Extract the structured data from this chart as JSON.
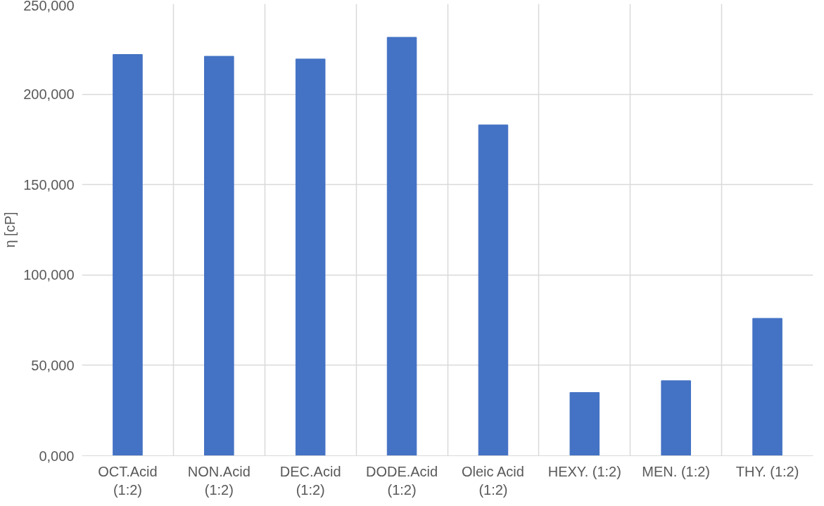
{
  "chart_data": {
    "type": "bar",
    "ylabel": "η [cP]",
    "categories": [
      "OCT.Acid\n(1:2)",
      "NON.Acid\n(1:2)",
      "DEC.Acid\n(1:2)",
      "DODE.Acid\n(1:2)",
      "Oleic Acid\n(1:2)",
      "HEXY. (1:2)",
      "MEN. (1:2)",
      "THY. (1:2)"
    ],
    "values": [
      222000,
      221000,
      219500,
      231500,
      183000,
      35000,
      41500,
      76000
    ],
    "color": "#4472c4",
    "ylim": [
      0,
      250000
    ],
    "yticks": [
      {
        "value": 0,
        "label": "0,000"
      },
      {
        "value": 50000,
        "label": "50,000"
      },
      {
        "value": 100000,
        "label": "100,000"
      },
      {
        "value": 150000,
        "label": "150,000"
      },
      {
        "value": 200000,
        "label": "200,000"
      },
      {
        "value": 250000,
        "label": "250,000"
      }
    ],
    "grid": true
  }
}
